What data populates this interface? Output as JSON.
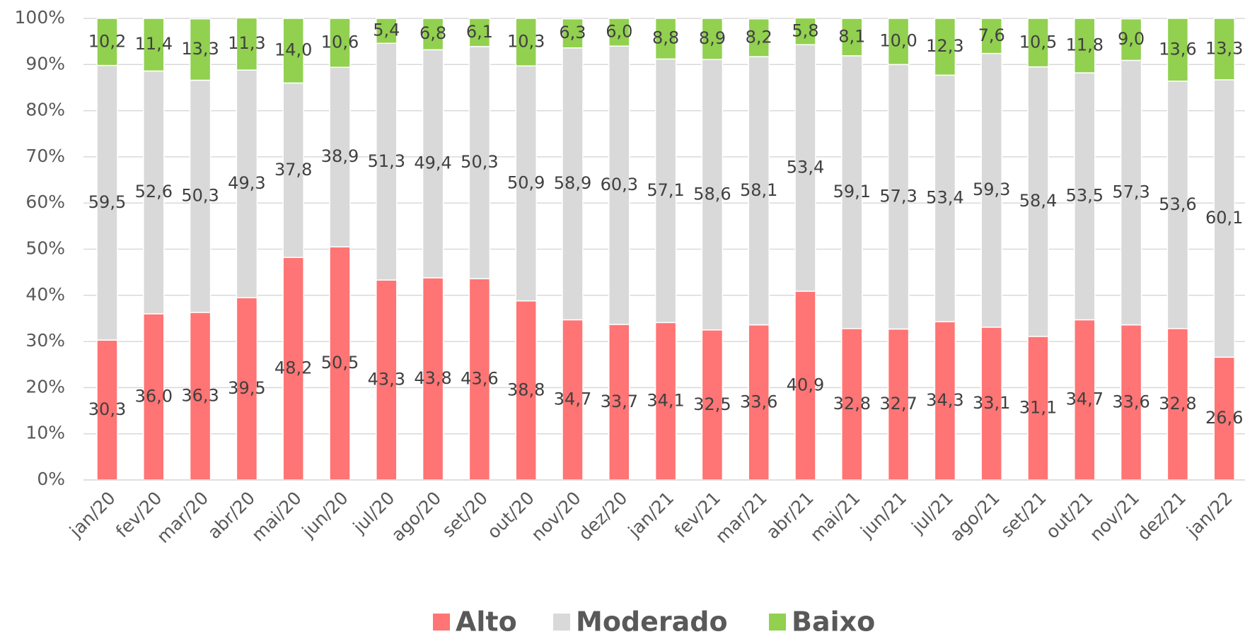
{
  "chart_data": {
    "type": "stacked_bar",
    "categories": [
      "jan/20",
      "fev/20",
      "mar/20",
      "abr/20",
      "mai/20",
      "jun/20",
      "jul/20",
      "ago/20",
      "set/20",
      "out/20",
      "nov/20",
      "dez/20",
      "jan/21",
      "fev/21",
      "mar/21",
      "abr/21",
      "mai/21",
      "jun/21",
      "jul/21",
      "ago/21",
      "set/21",
      "out/21",
      "nov/21",
      "dez/21",
      "jan/22"
    ],
    "series": [
      {
        "name": "Alto",
        "color": "#ff7474",
        "values": [
          30.3,
          36.0,
          36.3,
          39.5,
          48.2,
          50.5,
          43.3,
          43.8,
          43.6,
          38.8,
          34.7,
          33.7,
          34.1,
          32.5,
          33.6,
          40.9,
          32.8,
          32.7,
          34.3,
          33.1,
          31.1,
          34.7,
          33.6,
          32.8,
          26.6
        ],
        "value_labels": [
          "30,3",
          "36,0",
          "36,3",
          "39,5",
          "48,2",
          "50,5",
          "43,3",
          "43,8",
          "43,6",
          "38,8",
          "34,7",
          "33,7",
          "34,1",
          "32,5",
          "33,6",
          "40,9",
          "32,8",
          "32,7",
          "34,3",
          "33,1",
          "31,1",
          "34,7",
          "33,6",
          "32,8",
          "26,6"
        ]
      },
      {
        "name": "Moderado",
        "color": "#d9d9d9",
        "values": [
          59.5,
          52.6,
          50.3,
          49.3,
          37.8,
          38.9,
          51.3,
          49.4,
          50.3,
          50.9,
          58.9,
          60.3,
          57.1,
          58.6,
          58.1,
          53.4,
          59.1,
          57.3,
          53.4,
          59.3,
          58.4,
          53.5,
          57.3,
          53.6,
          60.1
        ],
        "value_labels": [
          "59,5",
          "52,6",
          "50,3",
          "49,3",
          "37,8",
          "38,9",
          "51,3",
          "49,4",
          "50,3",
          "50,9",
          "58,9",
          "60,3",
          "57,1",
          "58,6",
          "58,1",
          "53,4",
          "59,1",
          "57,3",
          "53,4",
          "59,3",
          "58,4",
          "53,5",
          "57,3",
          "53,6",
          "60,1"
        ]
      },
      {
        "name": "Baixo",
        "color": "#92d050",
        "values": [
          10.2,
          11.4,
          13.3,
          11.3,
          14.0,
          10.6,
          5.4,
          6.8,
          6.1,
          10.3,
          6.3,
          6.0,
          8.8,
          8.9,
          8.2,
          5.8,
          8.1,
          10.0,
          12.3,
          7.6,
          10.5,
          11.8,
          9.0,
          13.6,
          13.3
        ],
        "value_labels": [
          "10,2",
          "11,4",
          "13,3",
          "11,3",
          "14,0",
          "10,6",
          "5,4",
          "6,8",
          "6,1",
          "10,3",
          "6,3",
          "6,0",
          "8,8",
          "8,9",
          "8,2",
          "5,8",
          "8,1",
          "10,0",
          "12,3",
          "7,6",
          "10,5",
          "11,8",
          "9,0",
          "13,6",
          "13,3"
        ]
      }
    ],
    "ylim": [
      0,
      100
    ],
    "yticks": [
      {
        "value": 0,
        "label": "0%"
      },
      {
        "value": 10,
        "label": "10%"
      },
      {
        "value": 20,
        "label": "20%"
      },
      {
        "value": 30,
        "label": "30%"
      },
      {
        "value": 40,
        "label": "40%"
      },
      {
        "value": 50,
        "label": "50%"
      },
      {
        "value": 60,
        "label": "60%"
      },
      {
        "value": 70,
        "label": "70%"
      },
      {
        "value": 80,
        "label": "80%"
      },
      {
        "value": 90,
        "label": "90%"
      },
      {
        "value": 100,
        "label": "100%"
      }
    ],
    "grid": true,
    "legend": "bottom"
  }
}
